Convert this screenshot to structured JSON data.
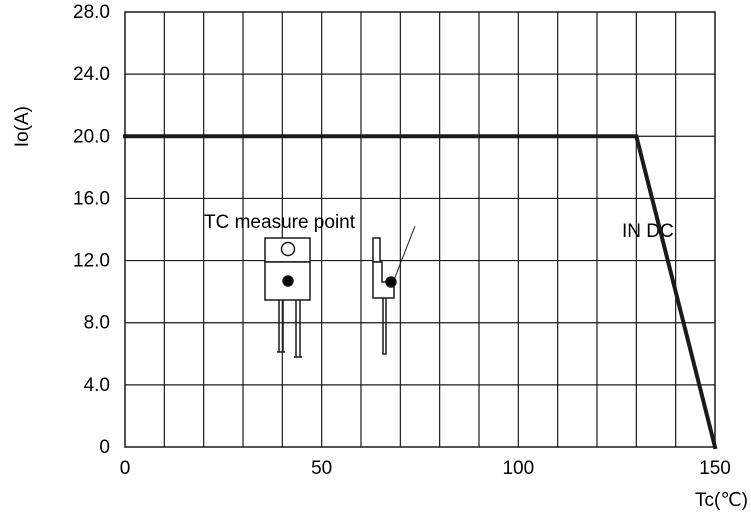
{
  "chart_data": {
    "type": "line",
    "xlabel": "Tc(℃)",
    "ylabel": "Io(A)",
    "xlim": [
      0,
      150
    ],
    "ylim": [
      0,
      28
    ],
    "x_ticks": [
      0,
      50,
      100,
      150
    ],
    "y_ticks": [
      "0",
      "4.0",
      "8.0",
      "12.0",
      "16.0",
      "20.0",
      "24.0",
      "28.0"
    ],
    "grid": true,
    "series": [
      {
        "x": [
          0,
          130,
          150
        ],
        "y": [
          20,
          20,
          0
        ]
      }
    ],
    "annotations": [
      "TC measure point",
      "IN DC"
    ],
    "line_color": "#1a1a1a"
  }
}
